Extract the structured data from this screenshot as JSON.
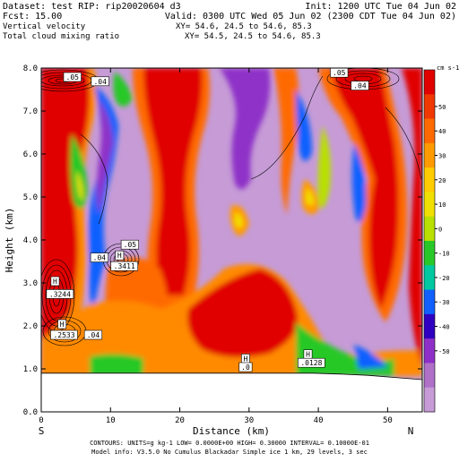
{
  "header": {
    "dataset": "Dataset: test   RIP: rip20020604 d3",
    "init": "Init: 1200 UTC Tue 04 Jun 02",
    "fcst": "Fcst:    15.00",
    "valid": "Valid: 0300 UTC Wed 05 Jun 02 (2300 CDT Tue 04 Jun 02)",
    "field1": "Vertical velocity",
    "xy1": "XY=  54.6, 24.5 to  54.6, 85.3",
    "field2": "Total cloud mixing ratio",
    "xy2": "XY=  54.5, 24.5 to  54.6, 85.3"
  },
  "footer": {
    "line1": "CONTOURS:  UNITS=g kg-1   LOW= 0.0000E+00  HIGH= 0.30000        INTERVAL=  0.10000E-01",
    "line2": "Model info: V3.5.0 No Cumulus Blackadar  Simple ice    1 km,  29 levels,    3 sec"
  },
  "chart_data": {
    "type": "heatmap",
    "title": "Vertical velocity / Total cloud mixing ratio (cross section)",
    "xlabel": "Distance (km)",
    "ylabel": "Height (km)",
    "xlim": [
      0,
      55
    ],
    "ylim": [
      0,
      8
    ],
    "xticks": [
      0,
      10,
      20,
      30,
      40,
      50
    ],
    "yticks": [
      0.0,
      1.0,
      2.0,
      3.0,
      4.0,
      5.0,
      6.0,
      7.0,
      8.0
    ],
    "xtick_labels": [
      "0",
      "10",
      "20",
      "30",
      "40",
      "50"
    ],
    "ytick_labels": [
      "0.0",
      "1.0",
      "2.0",
      "3.0",
      "4.0",
      "5.0",
      "6.0",
      "7.0",
      "8.0"
    ],
    "endpoints": {
      "left": "S",
      "right": "N"
    },
    "colorbar": {
      "units": "cm s-1",
      "labels": [
        "50",
        "40",
        "30",
        "20",
        "10",
        "0",
        "-10",
        "-20",
        "-30",
        "-40",
        "-50"
      ],
      "colors": [
        "#e00000",
        "#f03800",
        "#ff6a00",
        "#ff9a00",
        "#ffcc00",
        "#f0e000",
        "#b8e000",
        "#28c828",
        "#00c8a0",
        "#1060ff",
        "#3000c0",
        "#8e30c8",
        "#b070c8",
        "#c69bd6"
      ]
    },
    "terrain_height_km": [
      0.9,
      0.9,
      0.9,
      0.9,
      0.9,
      0.9,
      0.9,
      0.9,
      0.9,
      0.9,
      0.9,
      0.88,
      0.85,
      0.8,
      0.75
    ],
    "annotations": [
      {
        "text": ".05",
        "x": 4.5,
        "y": 7.75
      },
      {
        "text": ".04",
        "x": 8.5,
        "y": 7.65
      },
      {
        "text": ".05",
        "x": 43.0,
        "y": 7.85
      },
      {
        "text": ".04",
        "x": 46.0,
        "y": 7.55
      },
      {
        "text": ".05",
        "x": 12.8,
        "y": 3.85
      },
      {
        "text": "H",
        "x": 11.3,
        "y": 3.6
      },
      {
        "text": ".3411",
        "x": 12.0,
        "y": 3.35
      },
      {
        "text": ".04",
        "x": 8.4,
        "y": 3.55
      },
      {
        "text": "H",
        "x": 2.0,
        "y": 3.0
      },
      {
        "text": ".3244",
        "x": 2.7,
        "y": 2.7
      },
      {
        "text": "H",
        "x": 3.0,
        "y": 2.0
      },
      {
        "text": ".2533",
        "x": 3.3,
        "y": 1.75
      },
      {
        "text": ".04",
        "x": 7.5,
        "y": 1.75
      },
      {
        "text": "H",
        "x": 29.5,
        "y": 1.2
      },
      {
        "text": ".0",
        "x": 29.5,
        "y": 1.0
      },
      {
        "text": "H",
        "x": 38.5,
        "y": 1.3
      },
      {
        "text": ".0128",
        "x": 39.0,
        "y": 1.1
      }
    ]
  }
}
